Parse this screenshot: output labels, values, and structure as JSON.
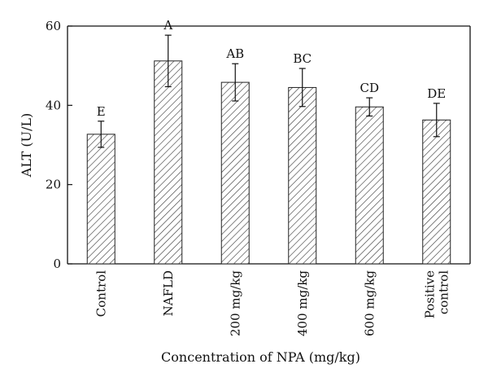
{
  "chart_data": {
    "type": "bar",
    "title": "",
    "xlabel": "Concentration of NPA (mg/kg)",
    "ylabel": "ALT (U/L)",
    "ylim": [
      0,
      60
    ],
    "yticks": [
      0,
      20,
      40,
      60
    ],
    "categories": [
      "Control",
      "NAFLD",
      "200 mg/kg",
      "400 mg/kg",
      "600 mg/kg",
      [
        "Positive",
        "control"
      ]
    ],
    "values": [
      32.7,
      51.2,
      45.8,
      44.5,
      39.6,
      36.3
    ],
    "errors": [
      3.3,
      6.5,
      4.7,
      4.8,
      2.3,
      4.2
    ],
    "significance_labels": [
      "E",
      "A",
      "AB",
      "BC",
      "CD",
      "DE"
    ],
    "bar_fill": "hatched",
    "grid": false,
    "legend": "none"
  }
}
